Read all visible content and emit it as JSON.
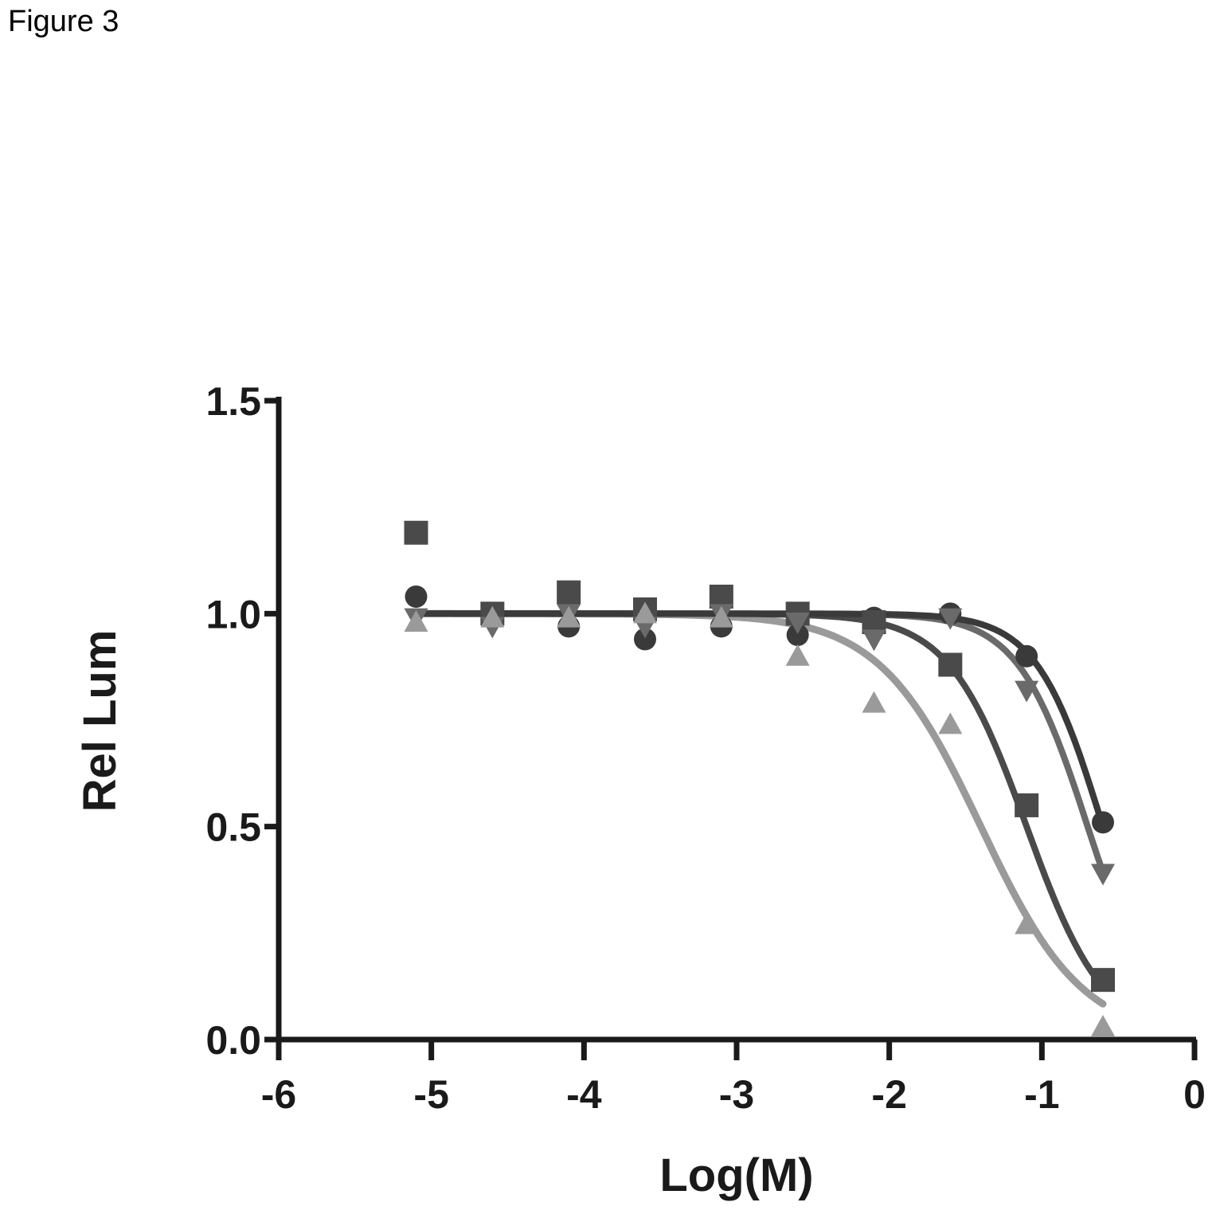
{
  "figure_label": "Figure 3",
  "chart_data": {
    "type": "scatter",
    "title": "",
    "xlabel": "Log(M)",
    "ylabel": "Rel Lum",
    "xlim": [
      -6,
      0
    ],
    "ylim": [
      0,
      1.5
    ],
    "xticks": [
      "-6",
      "-5",
      "-4",
      "-3",
      "-2",
      "-1",
      "0"
    ],
    "yticks": [
      "0.0",
      "0.5",
      "1.0",
      "1.5"
    ],
    "grid": false,
    "legend": "none",
    "series": [
      {
        "marker": "circle",
        "color": "#3a3a3a",
        "x": [
          -5.1,
          -4.6,
          -4.1,
          -3.6,
          -3.1,
          -2.6,
          -2.1,
          -1.6,
          -1.1,
          -0.6
        ],
        "y": [
          1.04,
          0.99,
          0.97,
          0.94,
          0.97,
          0.95,
          0.99,
          1.0,
          0.9,
          0.51
        ],
        "fit_logIC50": -0.6,
        "fit_hill": 2.0
      },
      {
        "marker": "square",
        "color": "#4a4a4a",
        "x": [
          -5.1,
          -4.6,
          -4.1,
          -3.6,
          -3.1,
          -2.6,
          -2.1,
          -1.6,
          -1.1,
          -0.6
        ],
        "y": [
          1.19,
          1.0,
          1.05,
          1.01,
          1.04,
          1.0,
          0.98,
          0.88,
          0.55,
          0.14
        ],
        "fit_logIC50": -1.1,
        "fit_hill": 1.7
      },
      {
        "marker": "triangle-down",
        "color": "#6a6a6a",
        "x": [
          -5.1,
          -4.6,
          -4.1,
          -3.6,
          -3.1,
          -2.6,
          -2.1,
          -1.6,
          -1.1,
          -0.6
        ],
        "y": [
          0.99,
          0.97,
          1.0,
          0.97,
          1.0,
          0.98,
          0.94,
          0.99,
          0.82,
          0.39
        ],
        "fit_logIC50": -0.7,
        "fit_hill": 1.9
      },
      {
        "marker": "triangle-up",
        "color": "#9a9a9a",
        "x": [
          -5.1,
          -4.6,
          -4.1,
          -3.6,
          -3.1,
          -2.6,
          -2.1,
          -1.6,
          -1.1,
          -0.6
        ],
        "y": [
          0.98,
          0.99,
          0.99,
          1.0,
          0.99,
          0.9,
          0.79,
          0.74,
          0.27,
          0.03
        ],
        "fit_logIC50": -1.4,
        "fit_hill": 1.3
      }
    ]
  }
}
